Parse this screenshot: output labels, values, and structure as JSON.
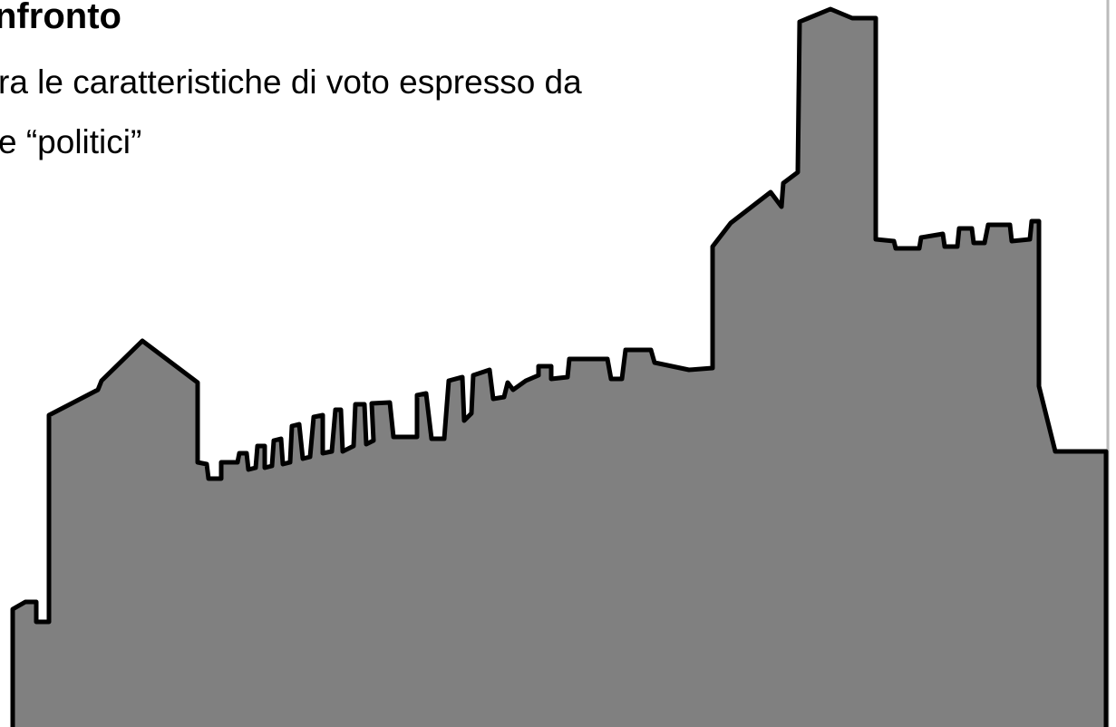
{
  "slide": {
    "title": "nfronto",
    "lines": [
      "ra le caratteristiche di voto espresso da",
      "e “politici”"
    ]
  }
}
